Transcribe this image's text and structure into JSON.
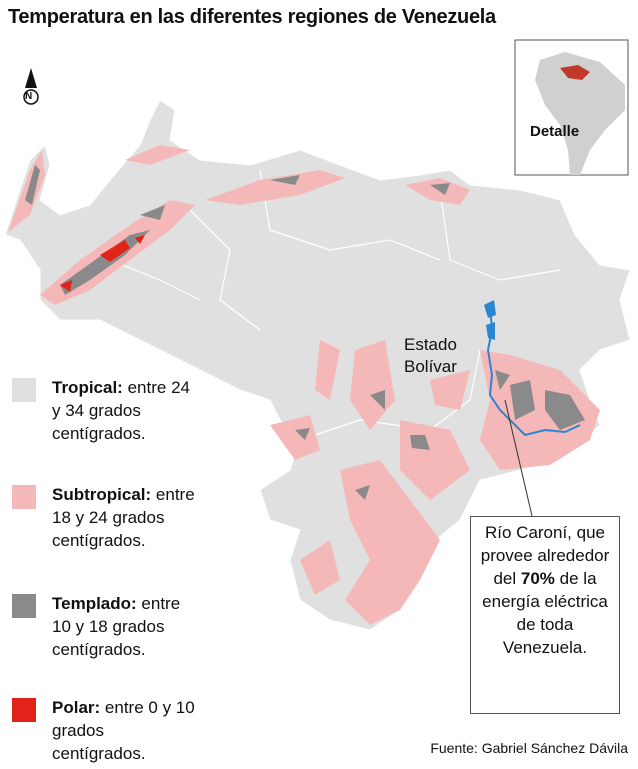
{
  "header": {
    "title": "Temperatura en las diferentes regiones de Venezuela"
  },
  "map": {
    "compass": "N",
    "region_label": "Estado Bolívar",
    "inset_label": "Detalle"
  },
  "legend": [
    {
      "name": "Tropical:",
      "description": "entre 24 y 34 grados centígrados.",
      "color": "#e0e0e0"
    },
    {
      "name": "Subtropical:",
      "description": "entre 18 y 24 grados centígrados.",
      "color": "#f5b8b8"
    },
    {
      "name": "Templado:",
      "description": "entre 10 y 18 grados centígrados.",
      "color": "#8a8a8a"
    },
    {
      "name": "Polar:",
      "description": "entre 0 y 10 grados centígrados.",
      "color": "#e2231a"
    }
  ],
  "annotation": {
    "before": "Río Caroní, que provee alrededor del",
    "highlight": "70%",
    "after": "de la energía eléctrica de toda Venezuela."
  },
  "source": "Fuente: Gabriel Sánchez Dávila"
}
